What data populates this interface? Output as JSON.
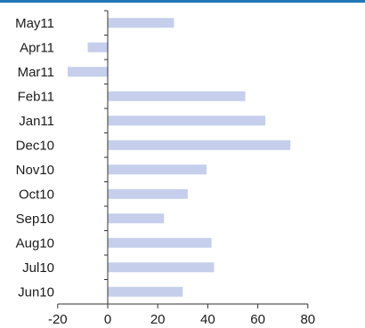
{
  "colors": {
    "top_rule": "#1f78b4",
    "bar": "#c5cfec",
    "axis": "#333333",
    "text": "#1a1a1a"
  },
  "chart_data": {
    "type": "bar",
    "orientation": "horizontal",
    "title": "",
    "xlabel": "",
    "ylabel": "",
    "categories": [
      "Jun10",
      "Jul10",
      "Aug10",
      "Sep10",
      "Oct10",
      "Nov10",
      "Dec10",
      "Jan11",
      "Feb11",
      "Mar11",
      "Apr11",
      "May11"
    ],
    "values": [
      30,
      42.5,
      41.5,
      22.5,
      32,
      39.5,
      73,
      63,
      55,
      -16,
      -8,
      26.5
    ],
    "xlim": [
      -20,
      80
    ],
    "xticks": [
      -20,
      0,
      20,
      40,
      60,
      80
    ],
    "grid": false,
    "legend": "none"
  }
}
